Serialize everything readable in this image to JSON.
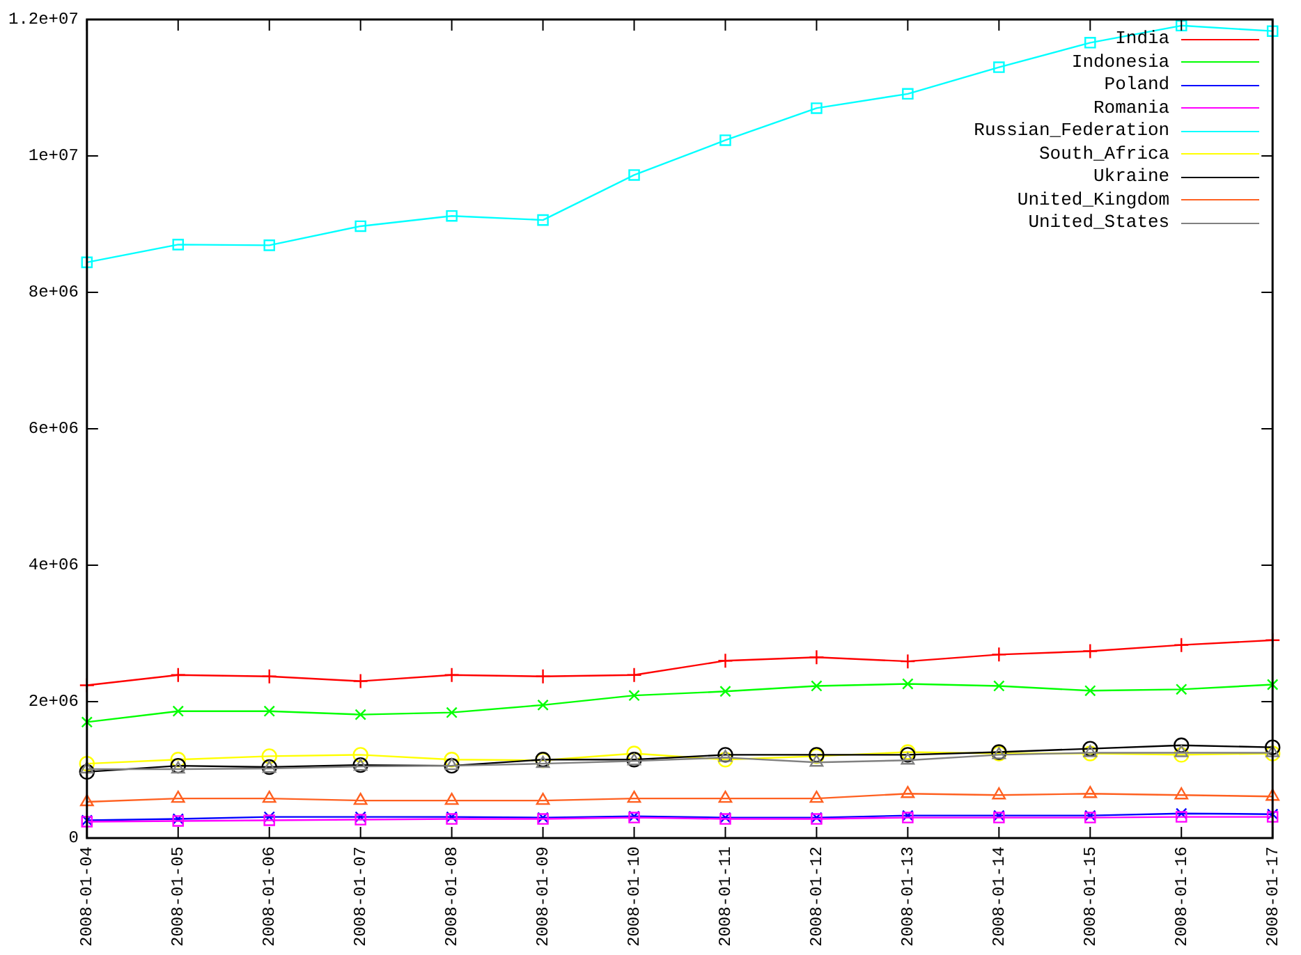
{
  "chart_data": {
    "type": "line",
    "categories": [
      "2008-01-04",
      "2008-01-05",
      "2008-01-06",
      "2008-01-07",
      "2008-01-08",
      "2008-01-09",
      "2008-01-10",
      "2008-01-11",
      "2008-01-12",
      "2008-01-13",
      "2008-01-14",
      "2008-01-15",
      "2008-01-16",
      "2008-01-17"
    ],
    "ylim": [
      0,
      12000000
    ],
    "yticks": [
      0,
      {
        "value": 2000000,
        "label": "2e+06"
      },
      {
        "value": 4000000,
        "label": "4e+06"
      },
      {
        "value": 6000000,
        "label": "6e+06"
      },
      {
        "value": 8000000,
        "label": "8e+06"
      },
      {
        "value": 10000000,
        "label": "1e+07"
      },
      {
        "value": 12000000,
        "label": "1.2e+07"
      }
    ],
    "grid": false,
    "legend": "top right",
    "series": [
      {
        "name": "India",
        "color": "#ff0000",
        "marker": "cross",
        "values": [
          2240000,
          2390000,
          2370000,
          2300000,
          2390000,
          2370000,
          2390000,
          2600000,
          2650000,
          2590000,
          2690000,
          2740000,
          2830000,
          2900000
        ]
      },
      {
        "name": "Indonesia",
        "color": "#00ff00",
        "marker": "cross",
        "values": [
          1700000,
          1860000,
          1860000,
          1810000,
          1840000,
          1950000,
          2090000,
          2150000,
          2230000,
          2260000,
          2230000,
          2160000,
          2180000,
          2250000
        ]
      },
      {
        "name": "Poland",
        "color": "#0000ff",
        "marker": "cross",
        "values": [
          260000,
          280000,
          310000,
          310000,
          310000,
          300000,
          320000,
          300000,
          300000,
          330000,
          330000,
          330000,
          360000,
          350000
        ]
      },
      {
        "name": "Romania",
        "color": "#ff00ff",
        "marker": "square",
        "values": [
          240000,
          250000,
          260000,
          270000,
          280000,
          280000,
          300000,
          280000,
          280000,
          300000,
          300000,
          300000,
          310000,
          310000
        ]
      },
      {
        "name": "Russian_Federation",
        "color": "#00ffff",
        "marker": "square",
        "values": [
          8440000,
          8700000,
          8690000,
          8970000,
          9120000,
          9060000,
          9720000,
          10230000,
          10700000,
          10910000,
          11300000,
          11660000,
          11910000,
          11830000
        ]
      },
      {
        "name": "South_Africa",
        "color": "#ffff00",
        "marker": "circle",
        "values": [
          1090000,
          1150000,
          1200000,
          1220000,
          1150000,
          1140000,
          1240000,
          1150000,
          1200000,
          1260000,
          1240000,
          1240000,
          1220000,
          1240000
        ]
      },
      {
        "name": "Ukraine",
        "color": "#000000",
        "marker": "circle",
        "values": [
          970000,
          1060000,
          1040000,
          1070000,
          1060000,
          1150000,
          1150000,
          1220000,
          1220000,
          1220000,
          1260000,
          1310000,
          1360000,
          1330000
        ]
      },
      {
        "name": "United_Kingdom",
        "color": "#ff6020",
        "marker": "triangle",
        "values": [
          530000,
          580000,
          580000,
          550000,
          550000,
          550000,
          580000,
          580000,
          580000,
          650000,
          630000,
          650000,
          630000,
          610000
        ]
      },
      {
        "name": "United_States",
        "color": "#808080",
        "marker": "triangle",
        "values": [
          1010000,
          1010000,
          1020000,
          1050000,
          1060000,
          1090000,
          1130000,
          1180000,
          1110000,
          1140000,
          1220000,
          1250000,
          1250000,
          1250000
        ]
      }
    ]
  }
}
